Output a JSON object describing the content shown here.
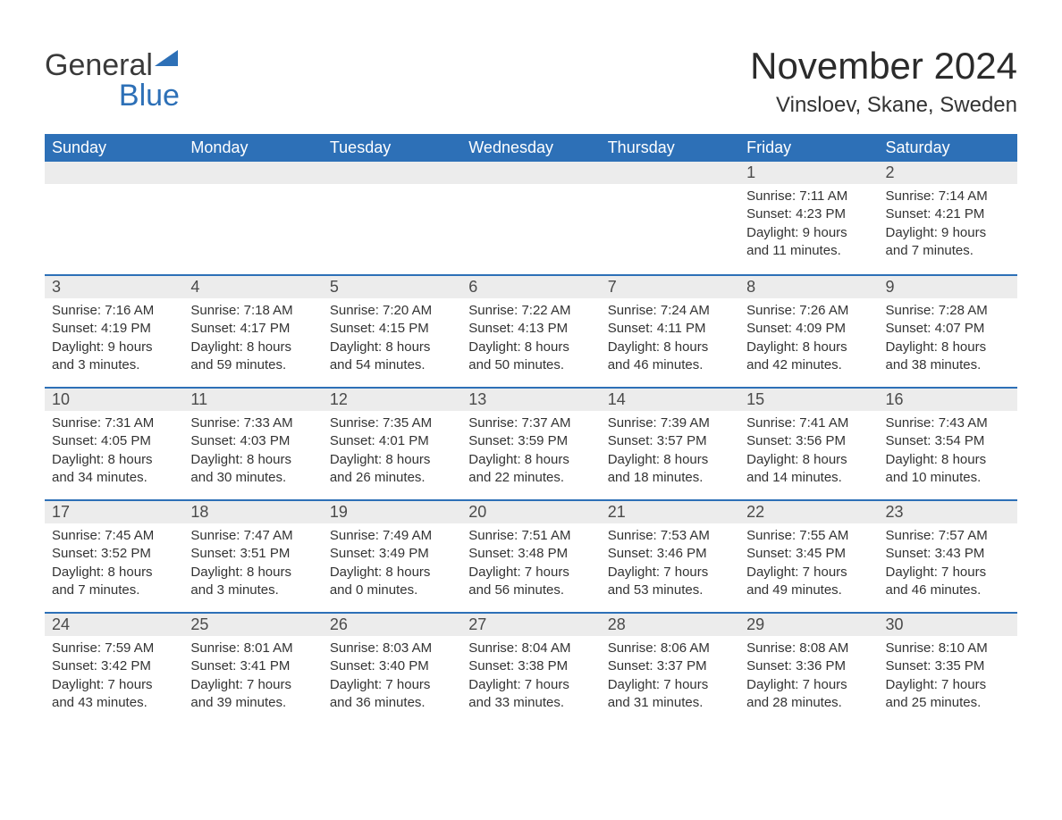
{
  "brand": {
    "word1": "General",
    "word2": "Blue",
    "colors": {
      "text_dark": "#3a3a3a",
      "blue": "#2d70b7",
      "triangle": "#2d70b7"
    }
  },
  "title": "November 2024",
  "location": "Vinsloev, Skane, Sweden",
  "columns": [
    "Sunday",
    "Monday",
    "Tuesday",
    "Wednesday",
    "Thursday",
    "Friday",
    "Saturday"
  ],
  "layout": {
    "header_bg": "#2d70b7",
    "header_text": "#ffffff",
    "daynum_bg": "#ececec",
    "rule_color": "#2d70b7",
    "body_text": "#333333",
    "fontsize_title": 42,
    "fontsize_location": 24,
    "fontsize_header": 18,
    "fontsize_daynum": 18,
    "fontsize_body": 15
  },
  "weeks": [
    [
      null,
      null,
      null,
      null,
      null,
      {
        "n": "1",
        "sunrise": "Sunrise: 7:11 AM",
        "sunset": "Sunset: 4:23 PM",
        "day1": "Daylight: 9 hours",
        "day2": "and 11 minutes."
      },
      {
        "n": "2",
        "sunrise": "Sunrise: 7:14 AM",
        "sunset": "Sunset: 4:21 PM",
        "day1": "Daylight: 9 hours",
        "day2": "and 7 minutes."
      }
    ],
    [
      {
        "n": "3",
        "sunrise": "Sunrise: 7:16 AM",
        "sunset": "Sunset: 4:19 PM",
        "day1": "Daylight: 9 hours",
        "day2": "and 3 minutes."
      },
      {
        "n": "4",
        "sunrise": "Sunrise: 7:18 AM",
        "sunset": "Sunset: 4:17 PM",
        "day1": "Daylight: 8 hours",
        "day2": "and 59 minutes."
      },
      {
        "n": "5",
        "sunrise": "Sunrise: 7:20 AM",
        "sunset": "Sunset: 4:15 PM",
        "day1": "Daylight: 8 hours",
        "day2": "and 54 minutes."
      },
      {
        "n": "6",
        "sunrise": "Sunrise: 7:22 AM",
        "sunset": "Sunset: 4:13 PM",
        "day1": "Daylight: 8 hours",
        "day2": "and 50 minutes."
      },
      {
        "n": "7",
        "sunrise": "Sunrise: 7:24 AM",
        "sunset": "Sunset: 4:11 PM",
        "day1": "Daylight: 8 hours",
        "day2": "and 46 minutes."
      },
      {
        "n": "8",
        "sunrise": "Sunrise: 7:26 AM",
        "sunset": "Sunset: 4:09 PM",
        "day1": "Daylight: 8 hours",
        "day2": "and 42 minutes."
      },
      {
        "n": "9",
        "sunrise": "Sunrise: 7:28 AM",
        "sunset": "Sunset: 4:07 PM",
        "day1": "Daylight: 8 hours",
        "day2": "and 38 minutes."
      }
    ],
    [
      {
        "n": "10",
        "sunrise": "Sunrise: 7:31 AM",
        "sunset": "Sunset: 4:05 PM",
        "day1": "Daylight: 8 hours",
        "day2": "and 34 minutes."
      },
      {
        "n": "11",
        "sunrise": "Sunrise: 7:33 AM",
        "sunset": "Sunset: 4:03 PM",
        "day1": "Daylight: 8 hours",
        "day2": "and 30 minutes."
      },
      {
        "n": "12",
        "sunrise": "Sunrise: 7:35 AM",
        "sunset": "Sunset: 4:01 PM",
        "day1": "Daylight: 8 hours",
        "day2": "and 26 minutes."
      },
      {
        "n": "13",
        "sunrise": "Sunrise: 7:37 AM",
        "sunset": "Sunset: 3:59 PM",
        "day1": "Daylight: 8 hours",
        "day2": "and 22 minutes."
      },
      {
        "n": "14",
        "sunrise": "Sunrise: 7:39 AM",
        "sunset": "Sunset: 3:57 PM",
        "day1": "Daylight: 8 hours",
        "day2": "and 18 minutes."
      },
      {
        "n": "15",
        "sunrise": "Sunrise: 7:41 AM",
        "sunset": "Sunset: 3:56 PM",
        "day1": "Daylight: 8 hours",
        "day2": "and 14 minutes."
      },
      {
        "n": "16",
        "sunrise": "Sunrise: 7:43 AM",
        "sunset": "Sunset: 3:54 PM",
        "day1": "Daylight: 8 hours",
        "day2": "and 10 minutes."
      }
    ],
    [
      {
        "n": "17",
        "sunrise": "Sunrise: 7:45 AM",
        "sunset": "Sunset: 3:52 PM",
        "day1": "Daylight: 8 hours",
        "day2": "and 7 minutes."
      },
      {
        "n": "18",
        "sunrise": "Sunrise: 7:47 AM",
        "sunset": "Sunset: 3:51 PM",
        "day1": "Daylight: 8 hours",
        "day2": "and 3 minutes."
      },
      {
        "n": "19",
        "sunrise": "Sunrise: 7:49 AM",
        "sunset": "Sunset: 3:49 PM",
        "day1": "Daylight: 8 hours",
        "day2": "and 0 minutes."
      },
      {
        "n": "20",
        "sunrise": "Sunrise: 7:51 AM",
        "sunset": "Sunset: 3:48 PM",
        "day1": "Daylight: 7 hours",
        "day2": "and 56 minutes."
      },
      {
        "n": "21",
        "sunrise": "Sunrise: 7:53 AM",
        "sunset": "Sunset: 3:46 PM",
        "day1": "Daylight: 7 hours",
        "day2": "and 53 minutes."
      },
      {
        "n": "22",
        "sunrise": "Sunrise: 7:55 AM",
        "sunset": "Sunset: 3:45 PM",
        "day1": "Daylight: 7 hours",
        "day2": "and 49 minutes."
      },
      {
        "n": "23",
        "sunrise": "Sunrise: 7:57 AM",
        "sunset": "Sunset: 3:43 PM",
        "day1": "Daylight: 7 hours",
        "day2": "and 46 minutes."
      }
    ],
    [
      {
        "n": "24",
        "sunrise": "Sunrise: 7:59 AM",
        "sunset": "Sunset: 3:42 PM",
        "day1": "Daylight: 7 hours",
        "day2": "and 43 minutes."
      },
      {
        "n": "25",
        "sunrise": "Sunrise: 8:01 AM",
        "sunset": "Sunset: 3:41 PM",
        "day1": "Daylight: 7 hours",
        "day2": "and 39 minutes."
      },
      {
        "n": "26",
        "sunrise": "Sunrise: 8:03 AM",
        "sunset": "Sunset: 3:40 PM",
        "day1": "Daylight: 7 hours",
        "day2": "and 36 minutes."
      },
      {
        "n": "27",
        "sunrise": "Sunrise: 8:04 AM",
        "sunset": "Sunset: 3:38 PM",
        "day1": "Daylight: 7 hours",
        "day2": "and 33 minutes."
      },
      {
        "n": "28",
        "sunrise": "Sunrise: 8:06 AM",
        "sunset": "Sunset: 3:37 PM",
        "day1": "Daylight: 7 hours",
        "day2": "and 31 minutes."
      },
      {
        "n": "29",
        "sunrise": "Sunrise: 8:08 AM",
        "sunset": "Sunset: 3:36 PM",
        "day1": "Daylight: 7 hours",
        "day2": "and 28 minutes."
      },
      {
        "n": "30",
        "sunrise": "Sunrise: 8:10 AM",
        "sunset": "Sunset: 3:35 PM",
        "day1": "Daylight: 7 hours",
        "day2": "and 25 minutes."
      }
    ]
  ]
}
